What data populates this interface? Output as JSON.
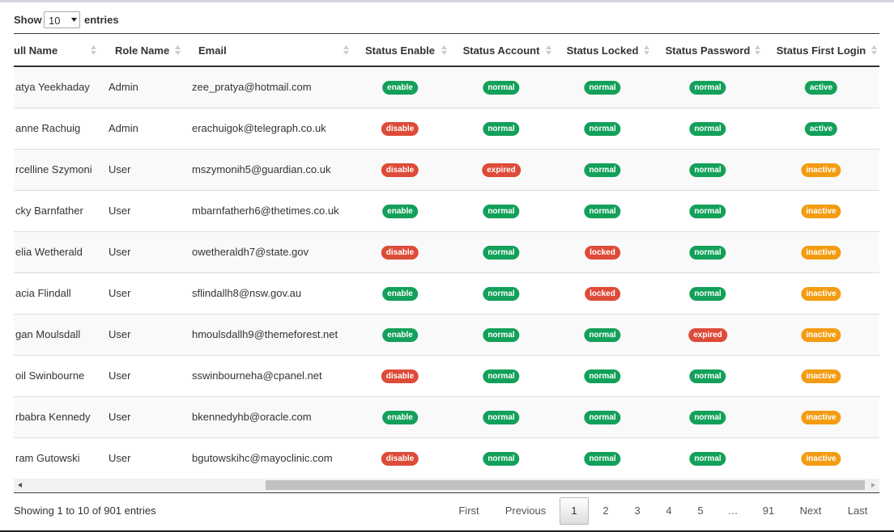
{
  "length_control": {
    "label_before": "Show",
    "selected": "10",
    "label_after": "entries"
  },
  "table": {
    "columns": [
      "ull Name",
      "Role Name",
      "Email",
      "Status Enable",
      "Status Account",
      "Status Locked",
      "Status Password",
      "Status First Login"
    ],
    "rows": [
      [
        "atya Yeekhaday",
        "Admin",
        "zee_pratya@hotmail.com",
        "enable",
        "normal",
        "normal",
        "normal",
        "active"
      ],
      [
        "anne Rachuig",
        "Admin",
        "erachuigok@telegraph.co.uk",
        "disable",
        "normal",
        "normal",
        "normal",
        "active"
      ],
      [
        "rcelline Szymoni",
        "User",
        "mszymonih5@guardian.co.uk",
        "disable",
        "expired",
        "normal",
        "normal",
        "inactive"
      ],
      [
        "cky Barnfather",
        "User",
        "mbarnfatherh6@thetimes.co.uk",
        "enable",
        "normal",
        "normal",
        "normal",
        "inactive"
      ],
      [
        "elia Wetherald",
        "User",
        "owetheraldh7@state.gov",
        "disable",
        "normal",
        "locked",
        "normal",
        "inactive"
      ],
      [
        "acia Flindall",
        "User",
        "sflindallh8@nsw.gov.au",
        "enable",
        "normal",
        "locked",
        "normal",
        "inactive"
      ],
      [
        "gan Moulsdall",
        "User",
        "hmoulsdallh9@themeforest.net",
        "enable",
        "normal",
        "normal",
        "expired",
        "inactive"
      ],
      [
        "oil Swinbourne",
        "User",
        "sswinbourneha@cpanel.net",
        "disable",
        "normal",
        "normal",
        "normal",
        "inactive"
      ],
      [
        "rbabra Kennedy",
        "User",
        "bkennedyhb@oracle.com",
        "enable",
        "normal",
        "normal",
        "normal",
        "inactive"
      ],
      [
        "ram Gutowski",
        "User",
        "bgutowskihc@mayoclinic.com",
        "disable",
        "normal",
        "normal",
        "normal",
        "inactive"
      ]
    ]
  },
  "footer": {
    "info": "Showing 1 to 10 of 901 entries",
    "pagination": [
      "First",
      "Previous",
      "1",
      "2",
      "3",
      "4",
      "5",
      "…",
      "91",
      "Next",
      "Last"
    ],
    "current": "1"
  }
}
